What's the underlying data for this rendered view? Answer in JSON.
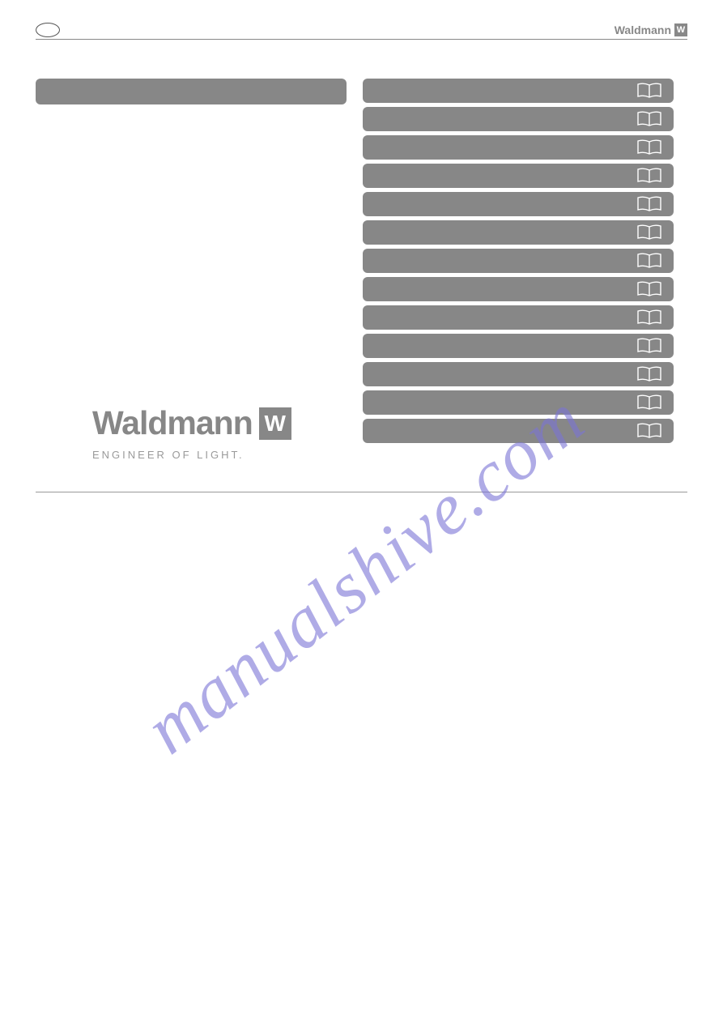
{
  "header": {
    "lang_badge": "",
    "brand_name": "Waldmann",
    "brand_w": "W"
  },
  "logo": {
    "name": "Waldmann",
    "w": "W",
    "tagline": "ENGINEER OF LIGHT."
  },
  "watermark": "manualshive.com",
  "colors": {
    "bar_bg": "#878787",
    "text_gray": "#878787",
    "watermark": "#7b74d6",
    "book_stroke": "#ffffff"
  },
  "lang_bars_count": 13
}
